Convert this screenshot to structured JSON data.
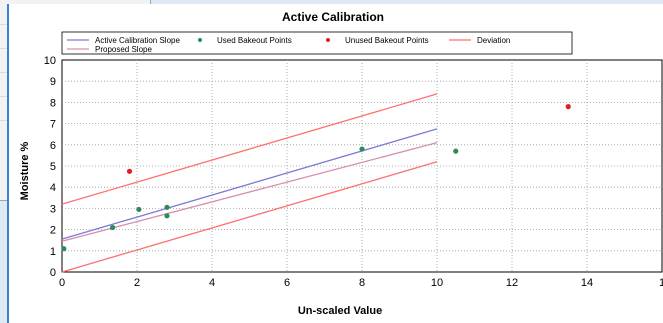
{
  "chart_data": {
    "type": "scatter",
    "title": "Active Calibration",
    "xlabel": "Un-scaled Value",
    "ylabel": "Moisture %",
    "xlim": [
      0,
      16
    ],
    "ylim": [
      0,
      10
    ],
    "x_ticks": [
      "0",
      "2",
      "4",
      "6",
      "8",
      "10",
      "12",
      "14",
      "1"
    ],
    "y_ticks": [
      "0",
      "1",
      "2",
      "3",
      "4",
      "5",
      "6",
      "7",
      "8",
      "9",
      "10"
    ],
    "grid": true,
    "legend_position": "top",
    "series": [
      {
        "name": "Active Calibration Slope",
        "kind": "line",
        "color": "#7b7bd6",
        "x": [
          0,
          10
        ],
        "y": [
          1.55,
          6.75
        ]
      },
      {
        "name": "Used Bakeout Points",
        "kind": "scatter",
        "color": "#2e8b57",
        "x": [
          0.05,
          1.35,
          2.05,
          2.8,
          2.8,
          8.0,
          10.5
        ],
        "y": [
          1.1,
          2.1,
          2.95,
          2.65,
          3.05,
          5.8,
          5.7
        ]
      },
      {
        "name": "Unused Bakeout Points",
        "kind": "scatter",
        "color": "#e02020",
        "x": [
          1.8,
          13.5
        ],
        "y": [
          4.75,
          7.8
        ]
      },
      {
        "name": "Deviation",
        "kind": "line",
        "color": "#ff7070",
        "segments": [
          {
            "x": [
              0,
              10
            ],
            "y": [
              3.2,
              8.4
            ]
          },
          {
            "x": [
              0,
              10
            ],
            "y": [
              0.0,
              5.2
            ]
          }
        ]
      },
      {
        "name": "Proposed Slope",
        "kind": "line",
        "color": "#d58fb0",
        "x": [
          0,
          10
        ],
        "y": [
          1.45,
          6.1
        ]
      }
    ]
  }
}
